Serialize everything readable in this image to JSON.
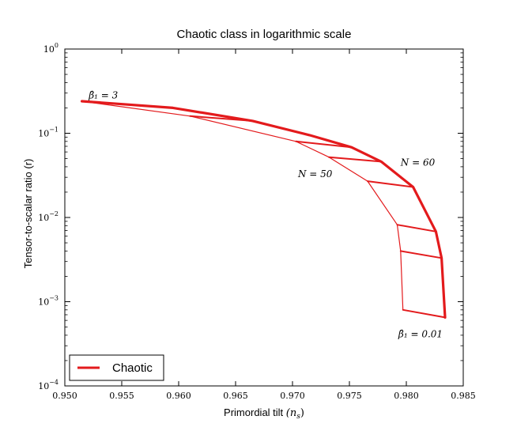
{
  "chart_data": {
    "type": "line",
    "title": "Chaotic class in logarithmic scale",
    "xlabel": "Primordial tilt (n_s)",
    "xlabel_main": "Primordial tilt ",
    "xlabel_symbol": "(n",
    "xlabel_sub": "s",
    "xlabel_close": ")",
    "ylabel": "Tensor-to-scalar ratio (r)",
    "xlim": [
      0.95,
      0.985
    ],
    "ylim": [
      0.0001,
      1
    ],
    "yscale": "log",
    "grid": false,
    "legend": {
      "position": "bottom-left",
      "entries": [
        {
          "label": "Chaotic",
          "color": "#e31a1c"
        }
      ]
    },
    "x_ticks": [
      {
        "value": 0.95,
        "label": "0.950"
      },
      {
        "value": 0.955,
        "label": "0.955"
      },
      {
        "value": 0.96,
        "label": "0.960"
      },
      {
        "value": 0.965,
        "label": "0.965"
      },
      {
        "value": 0.97,
        "label": "0.970"
      },
      {
        "value": 0.975,
        "label": "0.975"
      },
      {
        "value": 0.98,
        "label": "0.980"
      },
      {
        "value": 0.985,
        "label": "0.985"
      }
    ],
    "y_ticks": [
      {
        "value": 1,
        "base": "10",
        "exp": "0"
      },
      {
        "value": 0.1,
        "base": "10",
        "exp": "−1"
      },
      {
        "value": 0.01,
        "base": "10",
        "exp": "−2"
      },
      {
        "value": 0.001,
        "base": "10",
        "exp": "−3"
      },
      {
        "value": 0.0001,
        "base": "10",
        "exp": "−4"
      }
    ],
    "series": [
      {
        "name": "Chaotic",
        "color": "#e31a1c",
        "lines": [
          {
            "id": "n60",
            "width": 3.2,
            "points": [
              [
                0.9515,
                0.24
              ],
              [
                0.9595,
                0.2
              ],
              [
                0.9665,
                0.14
              ],
              [
                0.9715,
                0.095
              ],
              [
                0.9752,
                0.068
              ],
              [
                0.9778,
                0.046
              ],
              [
                0.9806,
                0.023
              ],
              [
                0.9826,
                0.0068
              ],
              [
                0.9831,
                0.0033
              ],
              [
                0.9834,
                0.00065
              ]
            ]
          },
          {
            "id": "n50",
            "width": 1.2,
            "points": [
              [
                0.9515,
                0.24
              ],
              [
                0.961,
                0.16
              ],
              [
                0.9703,
                0.08
              ],
              [
                0.9732,
                0.052
              ],
              [
                0.9766,
                0.027
              ],
              [
                0.9792,
                0.0082
              ],
              [
                0.9795,
                0.004
              ],
              [
                0.9797,
                0.0008
              ]
            ]
          },
          {
            "id": "c1",
            "width": 2.0,
            "points": [
              [
                0.9515,
                0.24
              ],
              [
                0.9595,
                0.2
              ]
            ]
          },
          {
            "id": "c2",
            "width": 2.0,
            "points": [
              [
                0.961,
                0.16
              ],
              [
                0.9665,
                0.14
              ]
            ]
          },
          {
            "id": "c3",
            "width": 2.0,
            "points": [
              [
                0.9703,
                0.08
              ],
              [
                0.9752,
                0.068
              ]
            ]
          },
          {
            "id": "c4",
            "width": 2.0,
            "points": [
              [
                0.9732,
                0.052
              ],
              [
                0.9778,
                0.046
              ]
            ]
          },
          {
            "id": "c5",
            "width": 2.0,
            "points": [
              [
                0.9766,
                0.027
              ],
              [
                0.9806,
                0.023
              ]
            ]
          },
          {
            "id": "c6",
            "width": 2.0,
            "points": [
              [
                0.9792,
                0.0082
              ],
              [
                0.9826,
                0.0068
              ]
            ]
          },
          {
            "id": "c7",
            "width": 2.0,
            "points": [
              [
                0.9795,
                0.004
              ],
              [
                0.9831,
                0.0033
              ]
            ]
          },
          {
            "id": "c8",
            "width": 2.0,
            "points": [
              [
                0.9797,
                0.0008
              ],
              [
                0.9834,
                0.00065
              ]
            ]
          }
        ]
      }
    ],
    "annotations": [
      {
        "id": "beta3",
        "text": "β̂₁ = 3",
        "x": 0.9521,
        "y": 0.26,
        "anchor": "start"
      },
      {
        "id": "n60lbl",
        "text": "N = 60",
        "x": 0.9795,
        "y": 0.041,
        "anchor": "start"
      },
      {
        "id": "n50lbl",
        "text": "N = 50",
        "x": 0.9735,
        "y": 0.03,
        "anchor": "end"
      },
      {
        "id": "beta001",
        "text": "β̂₁ = 0.01",
        "x": 0.9793,
        "y": 0.00038,
        "anchor": "start"
      }
    ]
  }
}
